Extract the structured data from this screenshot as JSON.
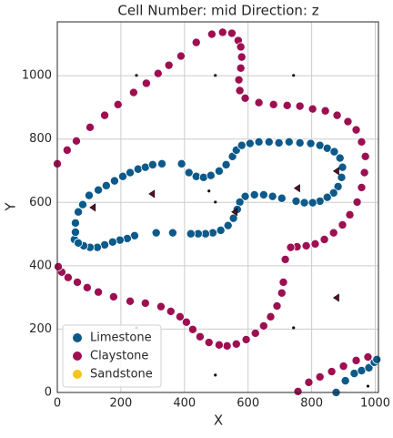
{
  "chart_data": {
    "type": "scatter",
    "title": "Cell Number: mid Direction: z",
    "x_label": "X",
    "y_label": "Y",
    "xlim": [
      0,
      1010
    ],
    "ylim": [
      0,
      1170
    ],
    "xticks": [
      0,
      200,
      400,
      600,
      800,
      1000
    ],
    "yticks": [
      0,
      200,
      400,
      600,
      800,
      1000
    ],
    "grid": true,
    "legend": "lower left",
    "series": [
      {
        "name": "Limestone",
        "color": "#0c5a8a",
        "x": [
          54,
          57,
          57,
          66,
          80,
          100,
          129,
          154,
          180,
          206,
          229,
          254,
          277,
          300,
          329,
          391,
          414,
          437,
          460,
          483,
          509,
          531,
          551,
          563,
          580,
          606,
          634,
          666,
          697,
          729,
          763,
          797,
          826,
          849,
          871,
          889,
          897,
          894,
          883,
          869,
          849,
          826,
          803,
          777,
          751,
          706,
          677,
          649,
          620,
          591,
          574,
          566,
          554,
          537,
          514,
          489,
          466,
          443,
          420,
          363,
          311,
          243,
          220,
          197,
          174,
          149,
          126,
          103,
          83,
          66,
          877,
          906,
          934,
          957,
          980,
          997,
          1005
        ],
        "y": [
          483,
          506,
          535,
          570,
          593,
          622,
          639,
          653,
          668,
          682,
          694,
          705,
          711,
          719,
          722,
          722,
          694,
          682,
          679,
          685,
          699,
          719,
          745,
          765,
          780,
          786,
          791,
          791,
          788,
          791,
          788,
          786,
          780,
          771,
          760,
          740,
          711,
          679,
          650,
          630,
          616,
          604,
          599,
          599,
          604,
          613,
          619,
          624,
          624,
          619,
          601,
          578,
          550,
          527,
          512,
          504,
          501,
          501,
          501,
          504,
          504,
          495,
          486,
          481,
          475,
          466,
          458,
          458,
          463,
          472,
          0,
          37,
          60,
          69,
          78,
          95,
          104
        ]
      },
      {
        "name": "Claystone",
        "color": "#9e0f52",
        "x": [
          0,
          31,
          60,
          103,
          149,
          191,
          240,
          280,
          317,
          351,
          389,
          437,
          486,
          520,
          549,
          569,
          577,
          580,
          577,
          571,
          574,
          591,
          634,
          680,
          723,
          763,
          803,
          843,
          880,
          914,
          940,
          957,
          969,
          966,
          957,
          943,
          920,
          897,
          869,
          840,
          811,
          783,
          754,
          734,
          717,
          711,
          706,
          691,
          671,
          649,
          623,
          594,
          563,
          534,
          509,
          477,
          449,
          426,
          406,
          386,
          357,
          326,
          277,
          229,
          177,
          129,
          94,
          63,
          34,
          14,
          3,
          757,
          791,
          826,
          863,
          900,
          940,
          977
        ],
        "y": [
          722,
          765,
          794,
          837,
          875,
          909,
          947,
          976,
          1007,
          1033,
          1062,
          1105,
          1131,
          1137,
          1134,
          1111,
          1091,
          1059,
          1024,
          987,
          953,
          929,
          915,
          909,
          906,
          904,
          895,
          889,
          875,
          855,
          829,
          791,
          745,
          694,
          647,
          601,
          561,
          529,
          504,
          483,
          469,
          463,
          460,
          458,
          420,
          348,
          314,
          273,
          239,
          210,
          187,
          167,
          153,
          147,
          150,
          158,
          176,
          199,
          222,
          239,
          256,
          271,
          282,
          288,
          302,
          317,
          331,
          348,
          363,
          380,
          397,
          3,
          32,
          49,
          66,
          83,
          101,
          112
        ]
      },
      {
        "name": "Sandstone",
        "color": "#f7c31c",
        "x": [],
        "y": []
      }
    ],
    "dots": {
      "color": "#111111",
      "x": [
        249,
        497,
        743,
        477,
        497,
        249,
        743,
        497,
        977
      ],
      "y": [
        1001,
        1001,
        1001,
        636,
        601,
        204,
        204,
        55,
        20
      ]
    },
    "triangles": {
      "color": "#5a1030",
      "x": [
        297,
        111,
        557,
        754,
        877,
        877
      ],
      "y": [
        627,
        584,
        570,
        645,
        699,
        299
      ]
    }
  }
}
